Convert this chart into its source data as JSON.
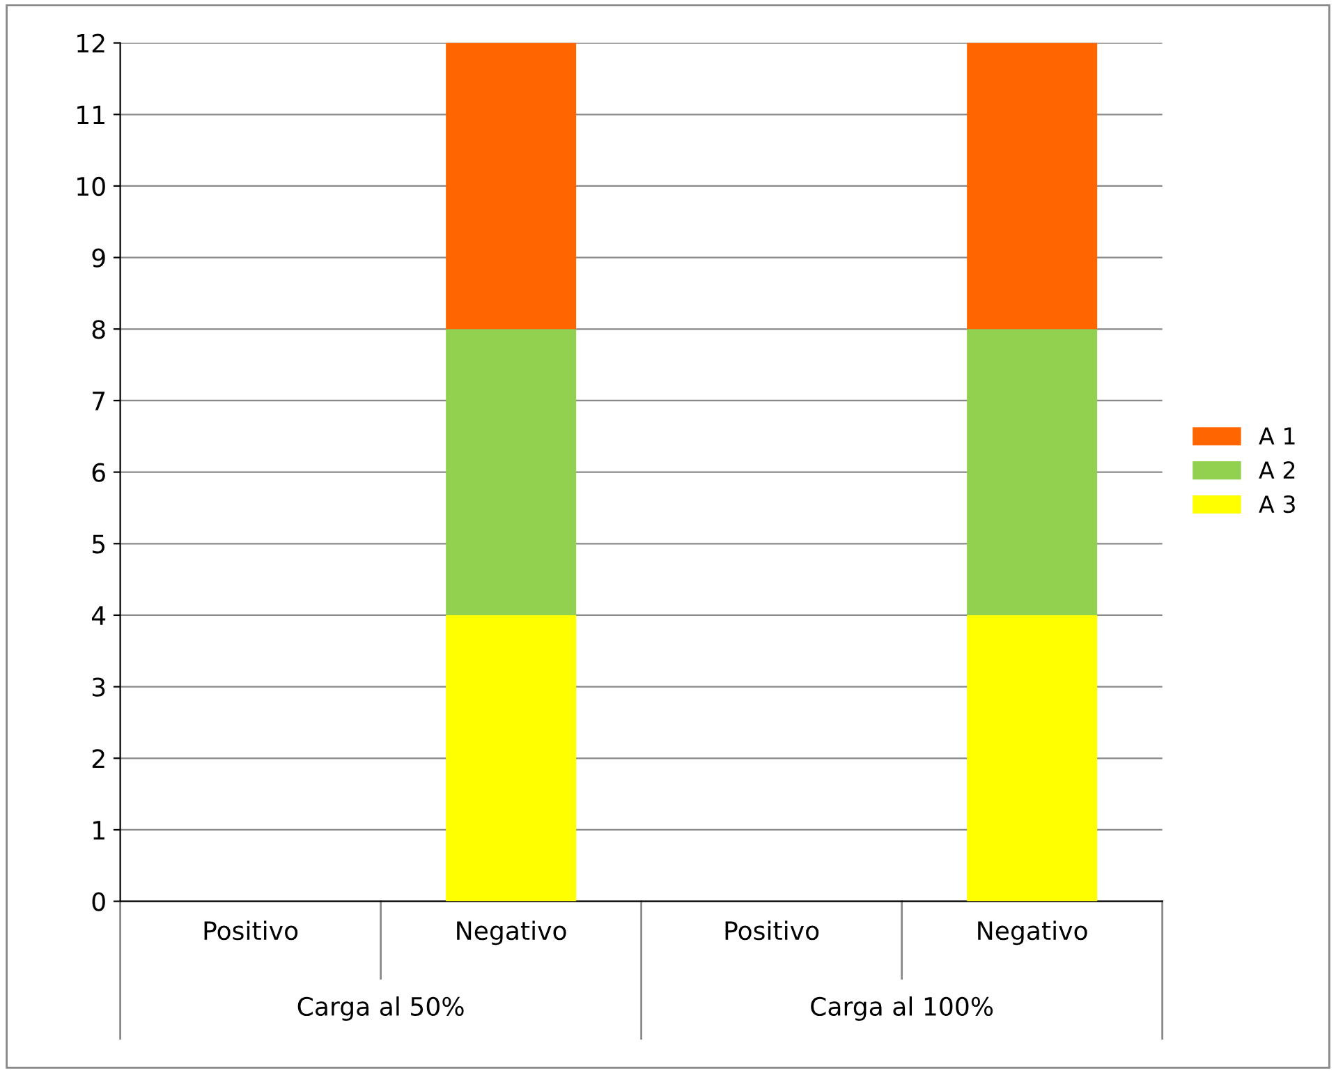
{
  "chart_data": {
    "type": "bar",
    "stacked": true,
    "categories": [
      "Positivo",
      "Negativo",
      "Positivo",
      "Negativo"
    ],
    "series": [
      {
        "name": "A 3",
        "color": "#ffff00",
        "values": [
          0,
          4,
          0,
          4
        ]
      },
      {
        "name": "A 2",
        "color": "#92d050",
        "values": [
          0,
          4,
          0,
          4
        ]
      },
      {
        "name": "A 1",
        "color": "#ff6600",
        "values": [
          0,
          4,
          0,
          4
        ]
      }
    ],
    "ylim": [
      0,
      12
    ],
    "yticks": [
      0,
      1,
      2,
      3,
      4,
      5,
      6,
      7,
      8,
      9,
      10,
      11,
      12
    ],
    "grid": "y",
    "legend": "right",
    "annotations": [
      "Carga al 50%",
      "Carga al 100%"
    ]
  }
}
